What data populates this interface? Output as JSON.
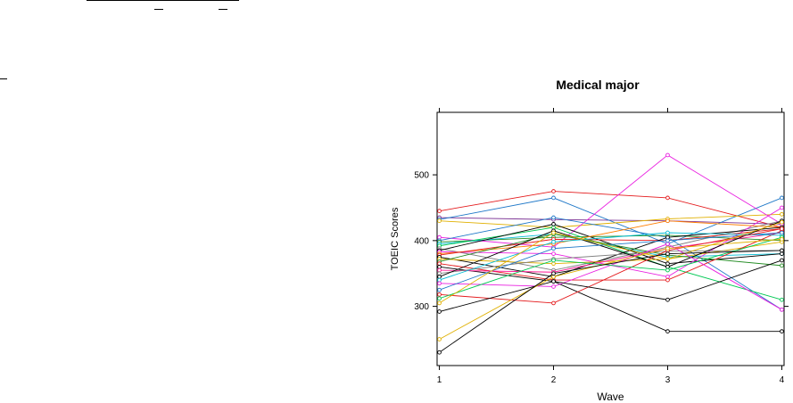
{
  "colors": {
    "palette": [
      "#000000",
      "#e41a1c",
      "#228b22",
      "#1f78c8",
      "#00bcd4",
      "#e91ee0",
      "#e0b000",
      "#808080",
      "#ff7f00",
      "#00c853",
      "#7b3294",
      "#ff1493"
    ]
  },
  "chart_data": {
    "type": "line",
    "title": "Medical major",
    "xlabel": "Wave",
    "ylabel": "TOEIC Scores",
    "x": [
      1,
      2,
      3,
      4
    ],
    "x_ticks": [
      "1",
      "2",
      "3",
      "4"
    ],
    "y_ticks": [
      "300",
      "400",
      "500"
    ],
    "xlim": [
      0.98,
      4.02
    ],
    "ylim": [
      210,
      595
    ],
    "grid": false,
    "legend": "none",
    "marker": "open-circle",
    "series": [
      {
        "values": [
          445,
          475,
          465,
          420
        ],
        "color": "#e41a1c"
      },
      {
        "values": [
          435,
          432,
          430,
          425
        ],
        "color": "#7b3294"
      },
      {
        "values": [
          432,
          465,
          395,
          465
        ],
        "color": "#1f78c8"
      },
      {
        "values": [
          430,
          420,
          433,
          440
        ],
        "color": "#e0b000"
      },
      {
        "values": [
          405,
          390,
          530,
          425
        ],
        "color": "#e91ee0"
      },
      {
        "values": [
          400,
          435,
          405,
          295
        ],
        "color": "#1f78c8"
      },
      {
        "values": [
          398,
          405,
          408,
          400
        ],
        "color": "#228b22"
      },
      {
        "values": [
          395,
          410,
          375,
          380
        ],
        "color": "#00bcd4"
      },
      {
        "values": [
          392,
          420,
          360,
          310
        ],
        "color": "#00c853"
      },
      {
        "values": [
          388,
          355,
          390,
          430
        ],
        "color": "#808080"
      },
      {
        "values": [
          385,
          425,
          365,
          380
        ],
        "color": "#000000"
      },
      {
        "values": [
          383,
          380,
          345,
          450
        ],
        "color": "#e91ee0"
      },
      {
        "values": [
          380,
          395,
          430,
          420
        ],
        "color": "#ff7f00"
      },
      {
        "values": [
          378,
          402,
          400,
          418
        ],
        "color": "#e41a1c"
      },
      {
        "values": [
          375,
          345,
          405,
          420
        ],
        "color": "#000000"
      },
      {
        "values": [
          372,
          365,
          372,
          398
        ],
        "color": "#e0b000"
      },
      {
        "values": [
          368,
          410,
          378,
          362
        ],
        "color": "#228b22"
      },
      {
        "values": [
          365,
          340,
          340,
          415
        ],
        "color": "#e41a1c"
      },
      {
        "values": [
          360,
          338,
          262,
          262
        ],
        "color": "#000000"
      },
      {
        "values": [
          355,
          352,
          388,
          412
        ],
        "color": "#ff1493"
      },
      {
        "values": [
          350,
          372,
          384,
          385
        ],
        "color": "#808080"
      },
      {
        "values": [
          345,
          415,
          360,
          430
        ],
        "color": "#000000"
      },
      {
        "values": [
          340,
          398,
          412,
          408
        ],
        "color": "#00bcd4"
      },
      {
        "values": [
          335,
          330,
          395,
          295
        ],
        "color": "#e91ee0"
      },
      {
        "values": [
          325,
          388,
          400,
          412
        ],
        "color": "#1f78c8"
      },
      {
        "values": [
          318,
          305,
          385,
          418
        ],
        "color": "#e41a1c"
      },
      {
        "values": [
          312,
          370,
          355,
          405
        ],
        "color": "#00c853"
      },
      {
        "values": [
          305,
          412,
          372,
          428
        ],
        "color": "#e0b000"
      },
      {
        "values": [
          292,
          338,
          310,
          370
        ],
        "color": "#000000"
      },
      {
        "values": [
          250,
          345,
          388,
          402
        ],
        "color": "#e0b000"
      },
      {
        "values": [
          230,
          350,
          380,
          385
        ],
        "color": "#000000"
      }
    ]
  }
}
